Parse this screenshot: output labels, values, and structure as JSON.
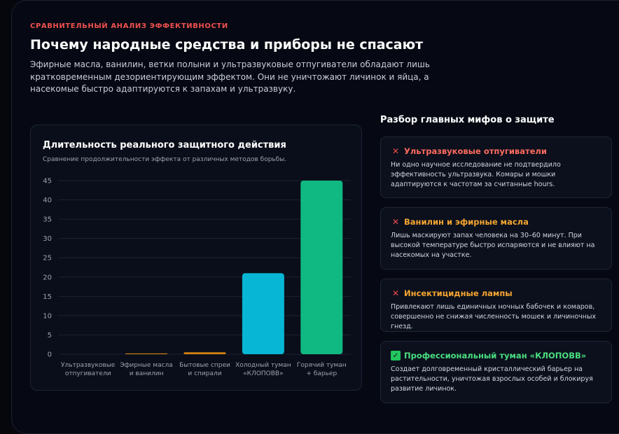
{
  "header": {
    "eyebrow": "СРАВНИТЕЛЬНЫЙ АНАЛИЗ ЭФФЕКТИВНОСТИ",
    "title": "Почему народные средства и приборы не спасают",
    "subtitle": "Эфирные масла, ванилин, ветки полыни и ультразвуковые отпугиватели обладают лишь кратковременным дезориентирующим эффектом. Они не уничтожают личинок и яйца, а насекомые быстро адаптируются к запахам и ультразвуку."
  },
  "chart_card": {
    "title": "Длительность реального защитного действия",
    "subtitle": "Сравнение продолжительности эффекта от различных методов борьбы."
  },
  "chart_data": {
    "type": "bar",
    "title": "Длительность реального защитного действия",
    "categories": [
      [
        "Ультразвуковые",
        "отпугиватели"
      ],
      [
        "Эфирные масла",
        "и ванилин"
      ],
      [
        "Бытовые спреи",
        "и спирали"
      ],
      [
        "Холодный туман",
        "«КЛОПОВВ»"
      ],
      [
        "Горячий туман",
        "+ барьер"
      ]
    ],
    "values": [
      0,
      0.2,
      0.5,
      21,
      45
    ],
    "colors": [
      "#ef4444",
      "#d4820f",
      "#d4820f",
      "#06b6d4",
      "#10b981"
    ],
    "ylim": [
      0,
      45
    ],
    "yticks": [
      0,
      5,
      10,
      15,
      20,
      25,
      30,
      35,
      40,
      45
    ],
    "grid": true
  },
  "myths": {
    "heading": "Разбор главных мифов о защите",
    "items": [
      {
        "icon": "cross-icon",
        "title": "Ультразвуковые отпугиватели",
        "text": "Ни одно научное исследование не подтвердило эффективность ультразвука. Комары и мошки адаптируются к частотам за считанные hours.",
        "color": "#ff6b5e"
      },
      {
        "icon": "cross-icon",
        "title": "Ванилин и эфирные масла",
        "text": "Лишь маскируют запах человека на 30–60 минут. При высокой температуре быстро испаряются и не влияют на насекомых на участке.",
        "color": "#f6a531"
      },
      {
        "icon": "cross-icon",
        "title": "Инсектицидные лампы",
        "text": "Привлекают лишь единичных ночных бабочек и комаров, совершенно не снижая численность мошек и личиночных гнезд.",
        "color": "#f6a531"
      },
      {
        "icon": "check-icon",
        "title": "Профессиональный туман «КЛОПОВВ»",
        "text": "Создает долговременный кристаллический барьер на растительности, уничтожая взрослых особей и блокируя развитие личинок.",
        "color": "#4ade80"
      }
    ]
  }
}
